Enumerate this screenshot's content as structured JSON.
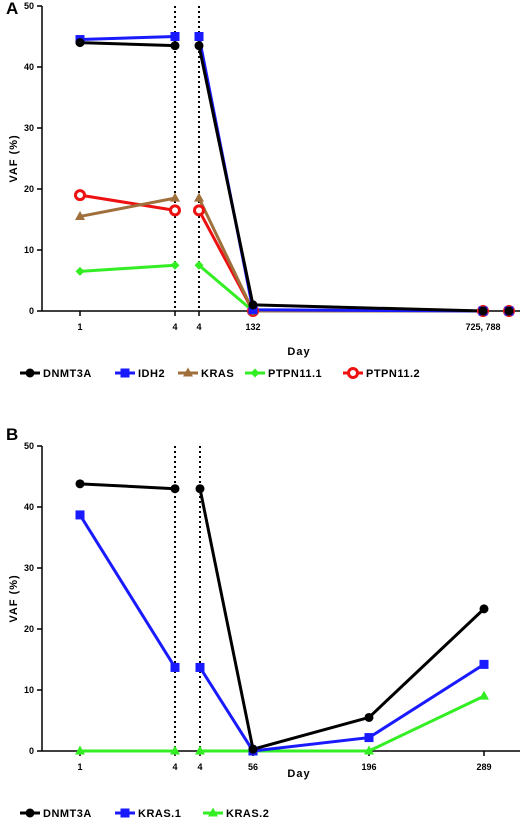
{
  "chart_data": [
    {
      "panel": "A",
      "type": "line",
      "xlabel": "Day",
      "ylabel": "VAF (%)",
      "ylim": [
        0,
        50
      ],
      "yticks": [
        "0",
        "10",
        "20",
        "30",
        "40",
        "50"
      ],
      "xticks": [
        "1",
        "4",
        "4",
        "132",
        "725, 788"
      ],
      "vlines_after_tick": [
        1,
        2
      ],
      "segments": [
        [
          0,
          1
        ],
        [
          2,
          4
        ]
      ],
      "series": [
        {
          "name": "DNMT3A",
          "color": "#000000",
          "marker": "circle",
          "values": [
            44,
            43.5,
            43.5,
            1,
            0,
            0
          ]
        },
        {
          "name": "IDH2",
          "color": "#1a1aff",
          "marker": "square",
          "values": [
            44.5,
            45,
            45,
            0.2,
            0,
            0
          ]
        },
        {
          "name": "KRAS",
          "color": "#a0703c",
          "marker": "triangle",
          "values": [
            15.5,
            18.5,
            18.5,
            0,
            0,
            0
          ]
        },
        {
          "name": "PTPN11.1",
          "color": "#33ee22",
          "marker": "diamond",
          "values": [
            6.5,
            7.5,
            7.5,
            0,
            0,
            0
          ]
        },
        {
          "name": "PTPN11.2",
          "color": "#ee1111",
          "marker": "open-circle",
          "values": [
            19,
            16.5,
            16.5,
            0,
            0,
            0
          ]
        }
      ],
      "x_positions": [
        0,
        1,
        2,
        3,
        4,
        4.25
      ]
    },
    {
      "panel": "B",
      "type": "line",
      "xlabel": "Day",
      "ylabel": "VAF (%)",
      "ylim": [
        0,
        50
      ],
      "yticks": [
        "0",
        "10",
        "20",
        "30",
        "40",
        "50"
      ],
      "xticks": [
        "1",
        "4",
        "4",
        "56",
        "196",
        "289"
      ],
      "vlines_after_tick": [
        1,
        2
      ],
      "segments": [
        [
          0,
          1
        ],
        [
          2,
          5
        ]
      ],
      "series": [
        {
          "name": "DNMT3A",
          "color": "#000000",
          "marker": "circle",
          "values": [
            43.8,
            43,
            43,
            0.3,
            5.5,
            23.3
          ]
        },
        {
          "name": "KRAS.1",
          "color": "#1a1aff",
          "marker": "square",
          "values": [
            38.7,
            13.7,
            13.7,
            0,
            2.2,
            14.2
          ]
        },
        {
          "name": "KRAS.2",
          "color": "#33ee22",
          "marker": "triangle",
          "values": [
            0,
            0,
            0,
            0,
            0,
            9
          ]
        }
      ],
      "x_positions": [
        0,
        1,
        2,
        3,
        4,
        5
      ]
    }
  ]
}
